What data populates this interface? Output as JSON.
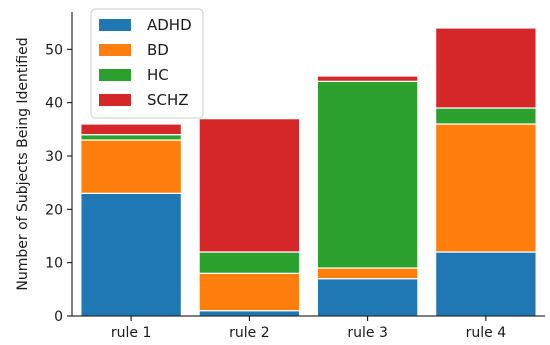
{
  "chart_data": {
    "type": "bar",
    "stacked": true,
    "categories": [
      "rule 1",
      "rule 2",
      "rule 3",
      "rule 4"
    ],
    "series": [
      {
        "name": "ADHD",
        "color": "#1f77b4",
        "values": [
          23,
          1,
          7,
          12
        ]
      },
      {
        "name": "BD",
        "color": "#ff7f0e",
        "values": [
          10,
          7,
          2,
          24
        ]
      },
      {
        "name": "HC",
        "color": "#2ca02c",
        "values": [
          1,
          4,
          35,
          3
        ]
      },
      {
        "name": "SCHZ",
        "color": "#d62728",
        "values": [
          2,
          25,
          1,
          15
        ]
      }
    ],
    "ylabel": "Number of Subjects Being Identified",
    "xlabel": "",
    "ylim": [
      0,
      57
    ],
    "yticks": [
      0,
      10,
      20,
      30,
      40,
      50
    ],
    "grid": false,
    "legend_position": "top-left"
  }
}
